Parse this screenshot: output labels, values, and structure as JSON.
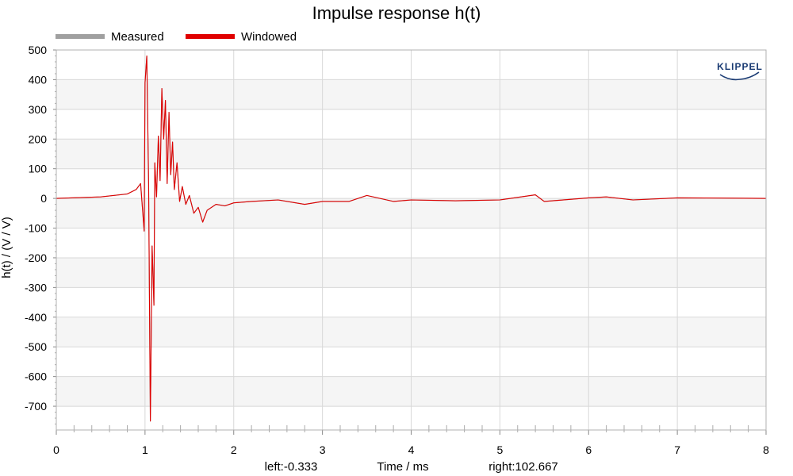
{
  "colors": {
    "measured": "#a0a0a0",
    "windowed": "#e00000",
    "band": "#f5f5f5",
    "grid": "#d8d8d8",
    "logo": "#1a3b73"
  },
  "logo": {
    "text": "KLIPPEL",
    "icon": "klippel-smile-icon"
  },
  "chart_data": {
    "type": "line",
    "title": "Impulse response h(t)",
    "xlabel": "Time / ms",
    "ylabel": "h(t) / (V / V)",
    "xlim": [
      0,
      8
    ],
    "ylim": [
      -780,
      500
    ],
    "xticks": [
      0,
      1,
      2,
      3,
      4,
      5,
      6,
      7,
      8
    ],
    "yticks": [
      500,
      400,
      300,
      200,
      100,
      0,
      -100,
      -200,
      -300,
      -400,
      -500,
      -600,
      -700
    ],
    "grid": true,
    "legend_position": "top-left",
    "legend": [
      "Measured",
      "Windowed"
    ],
    "annotations": {
      "left": "left:-0.333",
      "right": "right:102.667"
    },
    "series": [
      {
        "name": "Measured",
        "x": [
          0,
          0.5,
          0.8,
          0.9,
          0.95,
          0.99,
          1.0,
          1.02,
          1.04,
          1.06,
          1.08,
          1.1,
          1.11,
          1.13,
          1.15,
          1.17,
          1.19,
          1.21,
          1.23,
          1.25,
          1.27,
          1.29,
          1.31,
          1.33,
          1.36,
          1.39,
          1.42,
          1.46,
          1.5,
          1.55,
          1.6,
          1.65,
          1.7,
          1.8,
          1.9,
          2.0,
          2.2,
          2.5,
          2.8,
          3.0,
          3.3,
          3.5,
          3.8,
          4.0,
          4.5,
          5.0,
          5.4,
          5.5,
          6.0,
          6.2,
          6.5,
          7.0,
          7.5,
          8.0
        ],
        "y": [
          0,
          5,
          15,
          30,
          50,
          -110,
          390,
          480,
          50,
          -750,
          -160,
          -360,
          120,
          5,
          210,
          60,
          370,
          200,
          330,
          50,
          290,
          80,
          190,
          30,
          120,
          -10,
          40,
          -20,
          10,
          -50,
          -30,
          -80,
          -40,
          -20,
          -25,
          -15,
          -10,
          -5,
          -20,
          -10,
          -10,
          10,
          -10,
          -5,
          -8,
          -5,
          12,
          -10,
          2,
          5,
          -5,
          2,
          1,
          0
        ]
      },
      {
        "name": "Windowed",
        "x": [
          0,
          0.5,
          0.8,
          0.9,
          0.95,
          0.99,
          1.0,
          1.02,
          1.04,
          1.06,
          1.08,
          1.1,
          1.11,
          1.13,
          1.15,
          1.17,
          1.19,
          1.21,
          1.23,
          1.25,
          1.27,
          1.29,
          1.31,
          1.33,
          1.36,
          1.39,
          1.42,
          1.46,
          1.5,
          1.55,
          1.6,
          1.65,
          1.7,
          1.8,
          1.9,
          2.0,
          2.2,
          2.5,
          2.8,
          3.0,
          3.3,
          3.5,
          3.8,
          4.0,
          4.5,
          5.0,
          5.4,
          5.5,
          6.0,
          6.2,
          6.5,
          7.0,
          7.5,
          8.0
        ],
        "y": [
          0,
          5,
          15,
          30,
          50,
          -110,
          390,
          480,
          50,
          -750,
          -160,
          -360,
          120,
          5,
          210,
          60,
          370,
          200,
          330,
          50,
          290,
          80,
          190,
          30,
          120,
          -10,
          40,
          -20,
          10,
          -50,
          -30,
          -80,
          -40,
          -20,
          -25,
          -15,
          -10,
          -5,
          -20,
          -10,
          -10,
          10,
          -10,
          -5,
          -8,
          -5,
          12,
          -10,
          2,
          5,
          -5,
          2,
          1,
          0
        ]
      }
    ]
  }
}
